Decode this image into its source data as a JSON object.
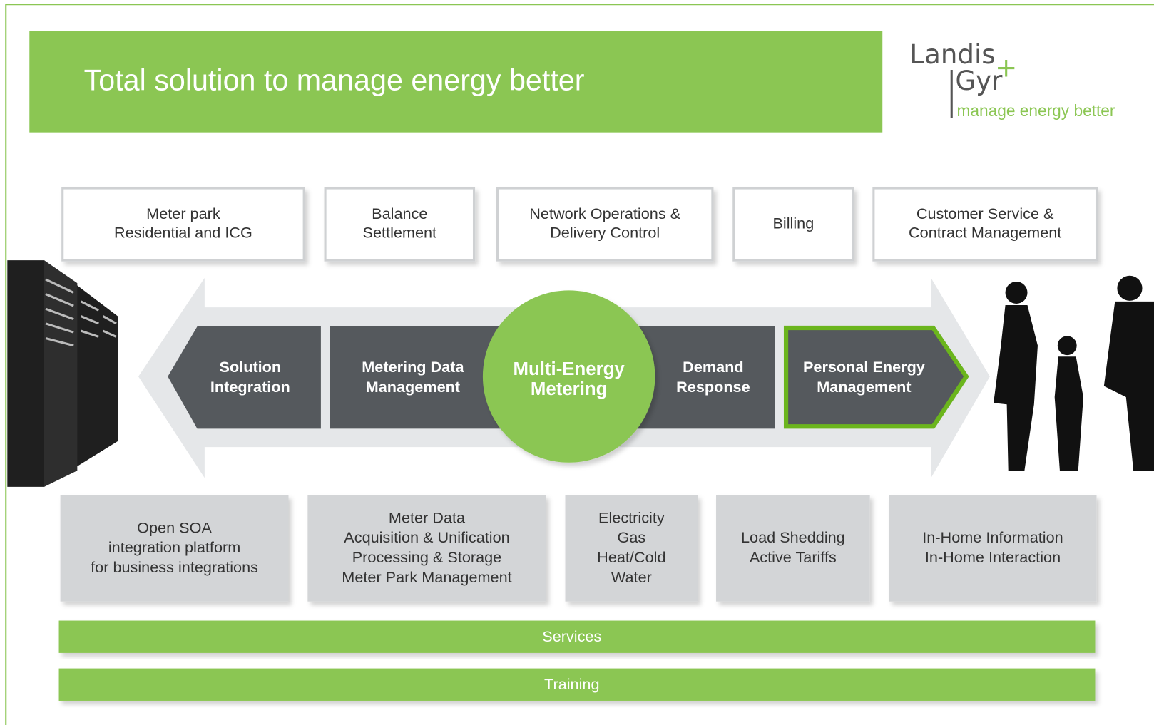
{
  "header": {
    "title": "Total solution to manage energy better"
  },
  "logo": {
    "name_lines": [
      "Landis",
      "Gyr"
    ],
    "plus": "+",
    "tagline": "manage energy better"
  },
  "top_boxes": [
    {
      "lines": [
        "Meter park",
        "Residential and ICG"
      ]
    },
    {
      "lines": [
        "Balance",
        "Settlement"
      ]
    },
    {
      "lines": [
        "Network Operations &",
        "Delivery Control"
      ]
    },
    {
      "lines": [
        "Billing"
      ]
    },
    {
      "lines": [
        "Customer Service &",
        "Contract Management"
      ]
    }
  ],
  "flow": {
    "segments": [
      {
        "lines": [
          "Solution",
          "Integration"
        ]
      },
      {
        "lines": [
          "Metering Data",
          "Management"
        ]
      },
      {
        "lines": [
          "Demand",
          "Response"
        ]
      },
      {
        "lines": [
          "Personal Energy",
          "Management"
        ]
      }
    ],
    "center": {
      "lines": [
        "Multi-Energy",
        "Metering"
      ]
    }
  },
  "bottom_boxes": [
    {
      "lines": [
        "Open SOA",
        "integration platform",
        "for business integrations"
      ]
    },
    {
      "lines": [
        "Meter Data",
        "Acquisition & Unification",
        "Processing & Storage",
        "Meter Park Management"
      ]
    },
    {
      "lines": [
        "Electricity",
        "Gas",
        "Heat/Cold",
        "Water"
      ]
    },
    {
      "lines": [
        "Load Shedding",
        "Active Tariffs"
      ]
    },
    {
      "lines": [
        "In-Home Information",
        "In-Home Interaction"
      ]
    }
  ],
  "bars": [
    "Services",
    "Training"
  ]
}
